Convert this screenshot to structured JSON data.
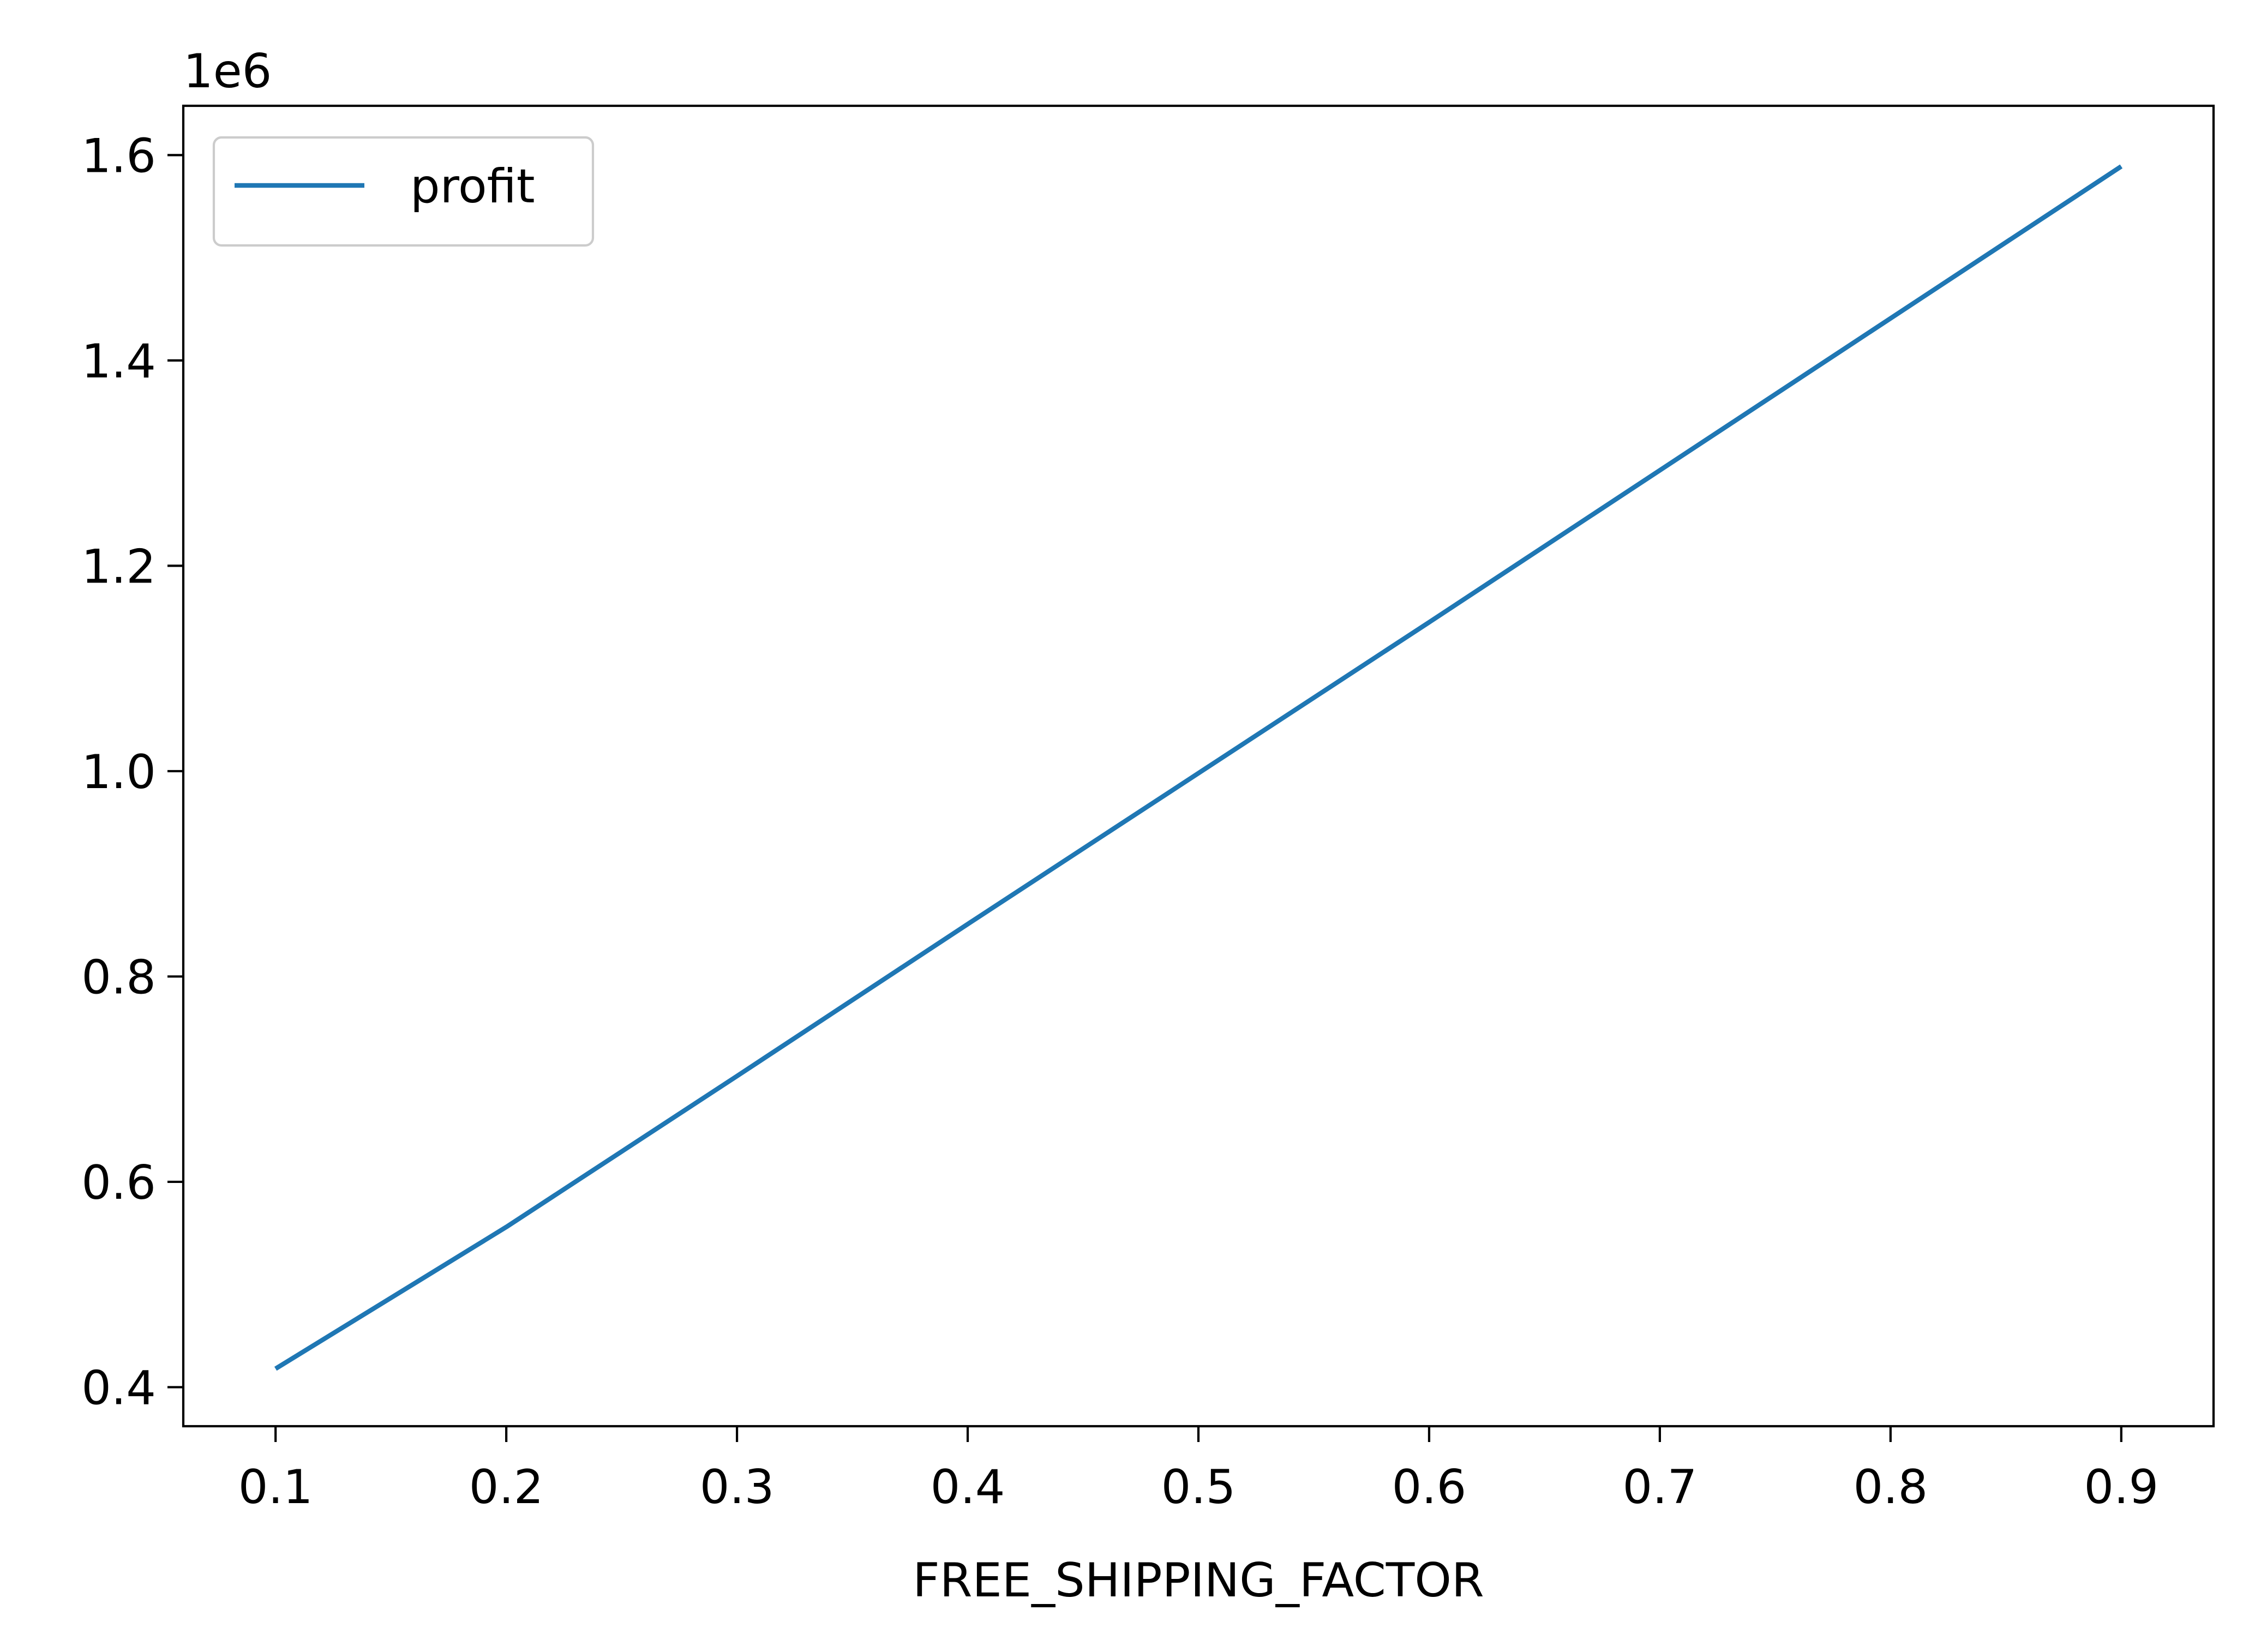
{
  "chart_data": {
    "type": "line",
    "title": "",
    "xlabel": "FREE_SHIPPING_FACTOR",
    "ylabel": "",
    "y_offset_text": "1e6",
    "xlim": [
      0.06,
      0.94
    ],
    "ylim": [
      0.362,
      1.648
    ],
    "x_ticks": [
      0.1,
      0.2,
      0.3,
      0.4,
      0.5,
      0.6,
      0.7,
      0.8,
      0.9
    ],
    "x_tick_labels": [
      "0.1",
      "0.2",
      "0.3",
      "0.4",
      "0.5",
      "0.6",
      "0.7",
      "0.8",
      "0.9"
    ],
    "y_ticks": [
      0.4,
      0.6,
      0.8,
      1.0,
      1.2,
      1.4,
      1.6
    ],
    "y_tick_labels": [
      "0.4",
      "0.6",
      "0.8",
      "1.0",
      "1.2",
      "1.4",
      "1.6"
    ],
    "grid": false,
    "legend_position": "top-left",
    "x": [
      0.1,
      0.2,
      0.3,
      0.4,
      0.5,
      0.6,
      0.7,
      0.8,
      0.9
    ],
    "series": [
      {
        "name": "profit",
        "color": "#1f77b4",
        "values": [
          0.418,
          0.556,
          0.703,
          0.851,
          0.998,
          1.145,
          1.293,
          1.441,
          1.589
        ]
      }
    ]
  }
}
